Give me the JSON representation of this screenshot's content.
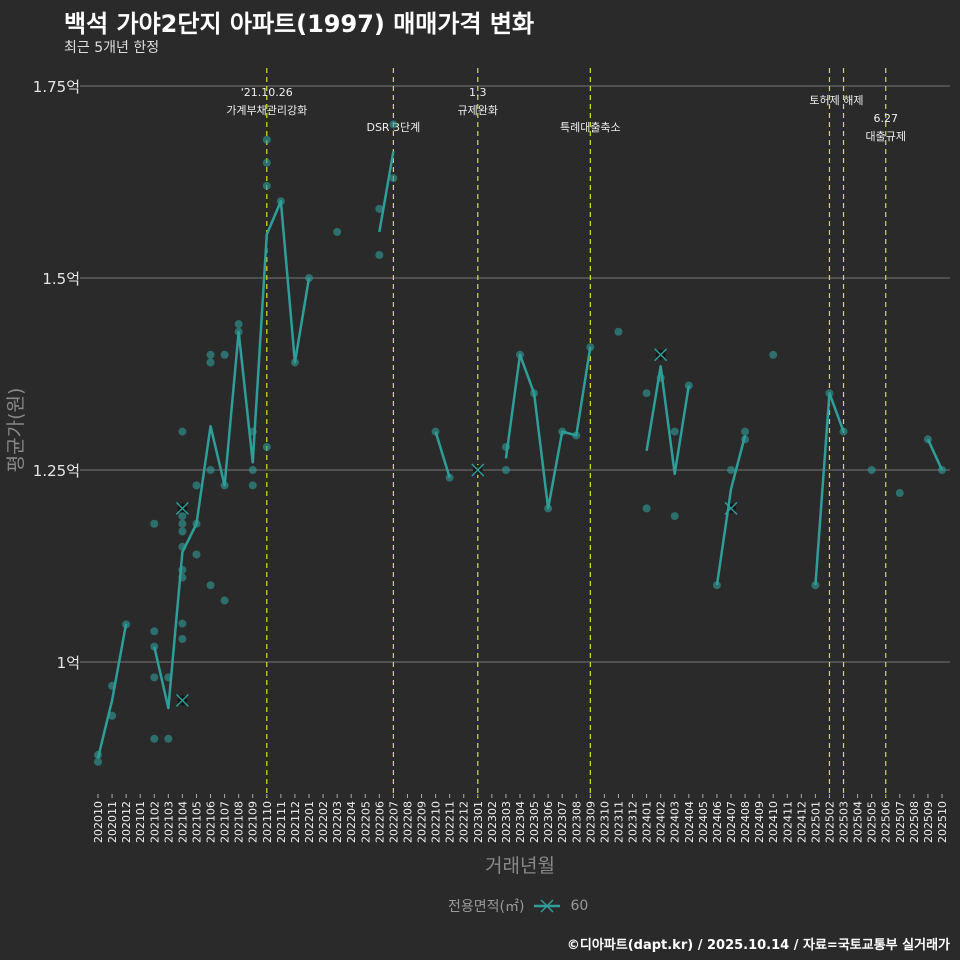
{
  "title": "백석 가야2단지 아파트(1997) 매매가격 변화",
  "subtitle": "최근 5개년 한정",
  "footer": "©디아파트(dapt.kr) / 2025.10.14 / 자료=국토교통부 실거래가",
  "legend": {
    "title": "전용면적(㎡)",
    "entries": [
      "60"
    ]
  },
  "colors": {
    "series": "#2e9e98",
    "event_line": "#d8e020",
    "background": "#2b2a2b",
    "grid": "#777777"
  },
  "chart_data": {
    "type": "line",
    "title": "백석 가야2단지 아파트(1997) 매매가격 변화",
    "xlabel": "거래년월",
    "ylabel": "평균가(원)",
    "ylim": [
      0.83,
      1.77
    ],
    "yticks": [
      {
        "v": 1.0,
        "label": "1억"
      },
      {
        "v": 1.25,
        "label": "1.25억"
      },
      {
        "v": 1.5,
        "label": "1.5억"
      },
      {
        "v": 1.75,
        "label": "1.75억"
      }
    ],
    "categories": [
      "202010",
      "202011",
      "202012",
      "202101",
      "202102",
      "202103",
      "202104",
      "202105",
      "202106",
      "202107",
      "202108",
      "202109",
      "202110",
      "202111",
      "202112",
      "202201",
      "202202",
      "202203",
      "202204",
      "202205",
      "202206",
      "202207",
      "202208",
      "202209",
      "202210",
      "202211",
      "202212",
      "202301",
      "202302",
      "202303",
      "202304",
      "202305",
      "202306",
      "202307",
      "202308",
      "202309",
      "202310",
      "202311",
      "202312",
      "202401",
      "202402",
      "202403",
      "202404",
      "202405",
      "202406",
      "202407",
      "202408",
      "202409",
      "202410",
      "202411",
      "202412",
      "202501",
      "202502",
      "202503",
      "202504",
      "202505",
      "202506",
      "202507",
      "202508",
      "202509",
      "202510"
    ],
    "events": [
      {
        "x": "202110",
        "lines": [
          "'21.10.26",
          "가계부채관리강화"
        ]
      },
      {
        "x": "202207",
        "lines": [
          "DSR 3단계"
        ]
      },
      {
        "x": "202301",
        "lines": [
          "1.3",
          "규제완화"
        ]
      },
      {
        "x": "202309",
        "lines": [
          "특례대출축소"
        ]
      },
      {
        "x": "202502",
        "lines": [
          "토허제 해제"
        ]
      },
      {
        "x": "202503",
        "lines": []
      },
      {
        "x": "202506",
        "lines": [
          "6.27",
          "대출규제"
        ]
      }
    ],
    "series": [
      {
        "name": "60",
        "average": [
          {
            "x": "202010",
            "y": 0.875
          },
          {
            "x": "202011",
            "y": 0.95
          },
          {
            "x": "202012",
            "y": 1.05
          },
          {
            "x": "202102",
            "y": 1.02
          },
          {
            "x": "202103",
            "y": 0.94
          },
          {
            "x": "202104",
            "y": 1.143
          },
          {
            "x": "202105",
            "y": 1.18
          },
          {
            "x": "202106",
            "y": 1.307
          },
          {
            "x": "202107",
            "y": 1.23
          },
          {
            "x": "202108",
            "y": 1.43
          },
          {
            "x": "202109",
            "y": 1.26
          },
          {
            "x": "202110",
            "y": 1.557
          },
          {
            "x": "202111",
            "y": 1.6
          },
          {
            "x": "202112",
            "y": 1.39
          },
          {
            "x": "202201",
            "y": 1.5
          },
          {
            "x": "202203",
            "y": 1.56
          },
          {
            "x": "202206",
            "y": 1.56
          },
          {
            "x": "202207",
            "y": 1.665
          },
          {
            "x": "202210",
            "y": 1.3
          },
          {
            "x": "202211",
            "y": 1.24
          },
          {
            "x": "202301",
            "y": 1.25
          },
          {
            "x": "202303",
            "y": 1.265
          },
          {
            "x": "202304",
            "y": 1.4
          },
          {
            "x": "202305",
            "y": 1.35
          },
          {
            "x": "202306",
            "y": 1.2
          },
          {
            "x": "202307",
            "y": 1.3
          },
          {
            "x": "202308",
            "y": 1.295
          },
          {
            "x": "202309",
            "y": 1.41
          },
          {
            "x": "202311",
            "y": 1.43
          },
          {
            "x": "202401",
            "y": 1.275
          },
          {
            "x": "202402",
            "y": 1.385
          },
          {
            "x": "202403",
            "y": 1.245
          },
          {
            "x": "202404",
            "y": 1.36
          },
          {
            "x": "202406",
            "y": 1.1
          },
          {
            "x": "202407",
            "y": 1.225
          },
          {
            "x": "202408",
            "y": 1.295
          },
          {
            "x": "202410",
            "y": 1.4
          },
          {
            "x": "202501",
            "y": 1.1
          },
          {
            "x": "202502",
            "y": 1.35
          },
          {
            "x": "202503",
            "y": 1.3
          },
          {
            "x": "202505",
            "y": 1.25
          },
          {
            "x": "202507",
            "y": 1.22
          },
          {
            "x": "202509",
            "y": 1.29
          },
          {
            "x": "202510",
            "y": 1.25
          }
        ],
        "transactions": [
          {
            "x": "202010",
            "y": 0.879
          },
          {
            "x": "202010",
            "y": 0.87
          },
          {
            "x": "202011",
            "y": 0.969
          },
          {
            "x": "202011",
            "y": 0.93
          },
          {
            "x": "202012",
            "y": 1.049
          },
          {
            "x": "202102",
            "y": 1.18
          },
          {
            "x": "202102",
            "y": 1.04
          },
          {
            "x": "202102",
            "y": 1.02
          },
          {
            "x": "202102",
            "y": 0.98
          },
          {
            "x": "202102",
            "y": 0.9
          },
          {
            "x": "202103",
            "y": 0.98
          },
          {
            "x": "202103",
            "y": 0.9
          },
          {
            "x": "202104",
            "y": 1.3
          },
          {
            "x": "202104",
            "y": 1.2,
            "cross": true
          },
          {
            "x": "202104",
            "y": 1.19
          },
          {
            "x": "202104",
            "y": 1.18
          },
          {
            "x": "202104",
            "y": 1.17
          },
          {
            "x": "202104",
            "y": 1.15
          },
          {
            "x": "202104",
            "y": 1.12
          },
          {
            "x": "202104",
            "y": 1.11
          },
          {
            "x": "202104",
            "y": 1.05
          },
          {
            "x": "202104",
            "y": 1.03
          },
          {
            "x": "202104",
            "y": 0.95,
            "cross": true
          },
          {
            "x": "202105",
            "y": 1.23
          },
          {
            "x": "202105",
            "y": 1.18
          },
          {
            "x": "202105",
            "y": 1.14
          },
          {
            "x": "202106",
            "y": 1.4
          },
          {
            "x": "202106",
            "y": 1.39
          },
          {
            "x": "202106",
            "y": 1.25
          },
          {
            "x": "202106",
            "y": 1.1
          },
          {
            "x": "202107",
            "y": 1.4
          },
          {
            "x": "202107",
            "y": 1.23
          },
          {
            "x": "202107",
            "y": 1.08
          },
          {
            "x": "202108",
            "y": 1.44
          },
          {
            "x": "202108",
            "y": 1.43
          },
          {
            "x": "202109",
            "y": 1.3
          },
          {
            "x": "202109",
            "y": 1.25
          },
          {
            "x": "202109",
            "y": 1.23
          },
          {
            "x": "202110",
            "y": 1.68
          },
          {
            "x": "202110",
            "y": 1.65
          },
          {
            "x": "202110",
            "y": 1.62
          },
          {
            "x": "202110",
            "y": 1.28
          },
          {
            "x": "202111",
            "y": 1.6
          },
          {
            "x": "202112",
            "y": 1.39
          },
          {
            "x": "202201",
            "y": 1.5
          },
          {
            "x": "202203",
            "y": 1.56
          },
          {
            "x": "202206",
            "y": 1.59
          },
          {
            "x": "202206",
            "y": 1.53
          },
          {
            "x": "202207",
            "y": 1.7
          },
          {
            "x": "202207",
            "y": 1.63
          },
          {
            "x": "202210",
            "y": 1.3
          },
          {
            "x": "202211",
            "y": 1.24
          },
          {
            "x": "202301",
            "y": 1.25,
            "cross": true
          },
          {
            "x": "202303",
            "y": 1.28
          },
          {
            "x": "202303",
            "y": 1.25
          },
          {
            "x": "202304",
            "y": 1.4
          },
          {
            "x": "202305",
            "y": 1.35
          },
          {
            "x": "202306",
            "y": 1.2
          },
          {
            "x": "202307",
            "y": 1.3
          },
          {
            "x": "202308",
            "y": 1.295
          },
          {
            "x": "202309",
            "y": 1.41
          },
          {
            "x": "202311",
            "y": 1.43
          },
          {
            "x": "202401",
            "y": 1.35
          },
          {
            "x": "202401",
            "y": 1.2
          },
          {
            "x": "202402",
            "y": 1.4,
            "cross": true
          },
          {
            "x": "202402",
            "y": 1.37
          },
          {
            "x": "202403",
            "y": 1.3
          },
          {
            "x": "202403",
            "y": 1.19
          },
          {
            "x": "202404",
            "y": 1.36
          },
          {
            "x": "202406",
            "y": 1.1
          },
          {
            "x": "202407",
            "y": 1.25
          },
          {
            "x": "202407",
            "y": 1.2,
            "cross": true
          },
          {
            "x": "202408",
            "y": 1.3
          },
          {
            "x": "202408",
            "y": 1.29
          },
          {
            "x": "202410",
            "y": 1.4
          },
          {
            "x": "202501",
            "y": 1.1
          },
          {
            "x": "202502",
            "y": 1.35
          },
          {
            "x": "202503",
            "y": 1.3
          },
          {
            "x": "202505",
            "y": 1.25
          },
          {
            "x": "202507",
            "y": 1.22
          },
          {
            "x": "202509",
            "y": 1.29
          },
          {
            "x": "202510",
            "y": 1.25
          }
        ]
      }
    ]
  }
}
